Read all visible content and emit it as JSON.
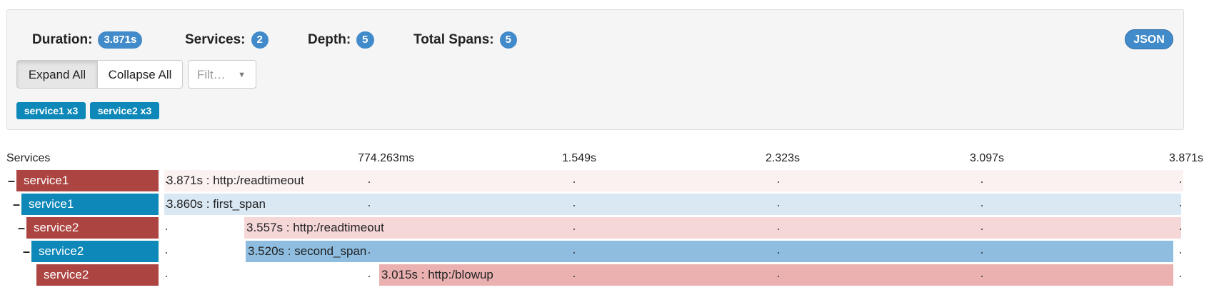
{
  "summary": {
    "items": [
      {
        "label": "Duration:",
        "value": "3.871s"
      },
      {
        "label": "Services:",
        "value": "2"
      },
      {
        "label": "Depth:",
        "value": "5"
      },
      {
        "label": "Total Spans:",
        "value": "5"
      }
    ],
    "json_button": "JSON"
  },
  "controls": {
    "expand": "Expand All",
    "collapse": "Collapse All",
    "filter": "Filt…"
  },
  "service_tags": [
    "service1 x3",
    "service2 x3"
  ],
  "timeline": {
    "header": "Services",
    "ticks": [
      "774.263ms",
      "1.549s",
      "2.323s",
      "3.097s",
      "3.871s"
    ]
  },
  "spans": [
    {
      "service": "service1",
      "label": "3.871s : http:/readtimeout"
    },
    {
      "service": "service1",
      "label": "3.860s : first_span"
    },
    {
      "service": "service2",
      "label": "3.557s : http:/readtimeout"
    },
    {
      "service": "service2",
      "label": "3.520s : second_span"
    },
    {
      "service": "service2",
      "label": "3.015s : http:/blowup"
    }
  ]
}
